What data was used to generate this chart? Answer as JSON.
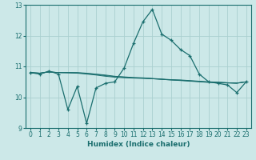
{
  "xlabel": "Humidex (Indice chaleur)",
  "xlim": [
    -0.5,
    23.5
  ],
  "ylim": [
    9,
    13
  ],
  "yticks": [
    9,
    10,
    11,
    12,
    13
  ],
  "xticks": [
    0,
    1,
    2,
    3,
    4,
    5,
    6,
    7,
    8,
    9,
    10,
    11,
    12,
    13,
    14,
    15,
    16,
    17,
    18,
    19,
    20,
    21,
    22,
    23
  ],
  "background_color": "#cce8e8",
  "grid_color": "#aad0d0",
  "line_color": "#1a6e6e",
  "main_line": {
    "x": [
      0,
      1,
      2,
      3,
      4,
      5,
      6,
      7,
      8,
      9,
      10,
      11,
      12,
      13,
      14,
      15,
      16,
      17,
      18,
      19,
      20,
      21,
      22,
      23
    ],
    "y": [
      10.8,
      10.75,
      10.85,
      10.75,
      9.6,
      10.35,
      9.15,
      10.3,
      10.45,
      10.5,
      10.95,
      11.75,
      12.45,
      12.85,
      12.05,
      11.85,
      11.55,
      11.35,
      10.75,
      10.5,
      10.45,
      10.4,
      10.15,
      10.5
    ]
  },
  "smooth_lines": [
    {
      "x": [
        0,
        1,
        2,
        3,
        4,
        5,
        6,
        7,
        8,
        9,
        10,
        11,
        12,
        13,
        14,
        15,
        16,
        17,
        18,
        19,
        20,
        21,
        22,
        23
      ],
      "y": [
        10.8,
        10.78,
        10.82,
        10.8,
        10.79,
        10.78,
        10.75,
        10.72,
        10.68,
        10.65,
        10.63,
        10.62,
        10.61,
        10.6,
        10.58,
        10.56,
        10.54,
        10.52,
        10.5,
        10.48,
        10.47,
        10.46,
        10.45,
        10.5
      ]
    },
    {
      "x": [
        0,
        1,
        2,
        3,
        4,
        5,
        6,
        7,
        8,
        9,
        10,
        11,
        12,
        13,
        14,
        15,
        16,
        17,
        18,
        19,
        20,
        21,
        22,
        23
      ],
      "y": [
        10.8,
        10.78,
        10.82,
        10.8,
        10.8,
        10.79,
        10.77,
        10.74,
        10.7,
        10.67,
        10.65,
        10.63,
        10.62,
        10.6,
        10.58,
        10.56,
        10.55,
        10.53,
        10.51,
        10.49,
        10.48,
        10.47,
        10.46,
        10.5
      ]
    },
    {
      "x": [
        0,
        1,
        2,
        3,
        4,
        5,
        6,
        7,
        8,
        9,
        10,
        11,
        12,
        13,
        14,
        15,
        16,
        17,
        18,
        19,
        20,
        21,
        22,
        23
      ],
      "y": [
        10.8,
        10.78,
        10.82,
        10.8,
        10.8,
        10.8,
        10.78,
        10.75,
        10.72,
        10.68,
        10.66,
        10.64,
        10.63,
        10.61,
        10.59,
        10.57,
        10.56,
        10.54,
        10.52,
        10.5,
        10.49,
        10.47,
        10.46,
        10.5
      ]
    }
  ]
}
